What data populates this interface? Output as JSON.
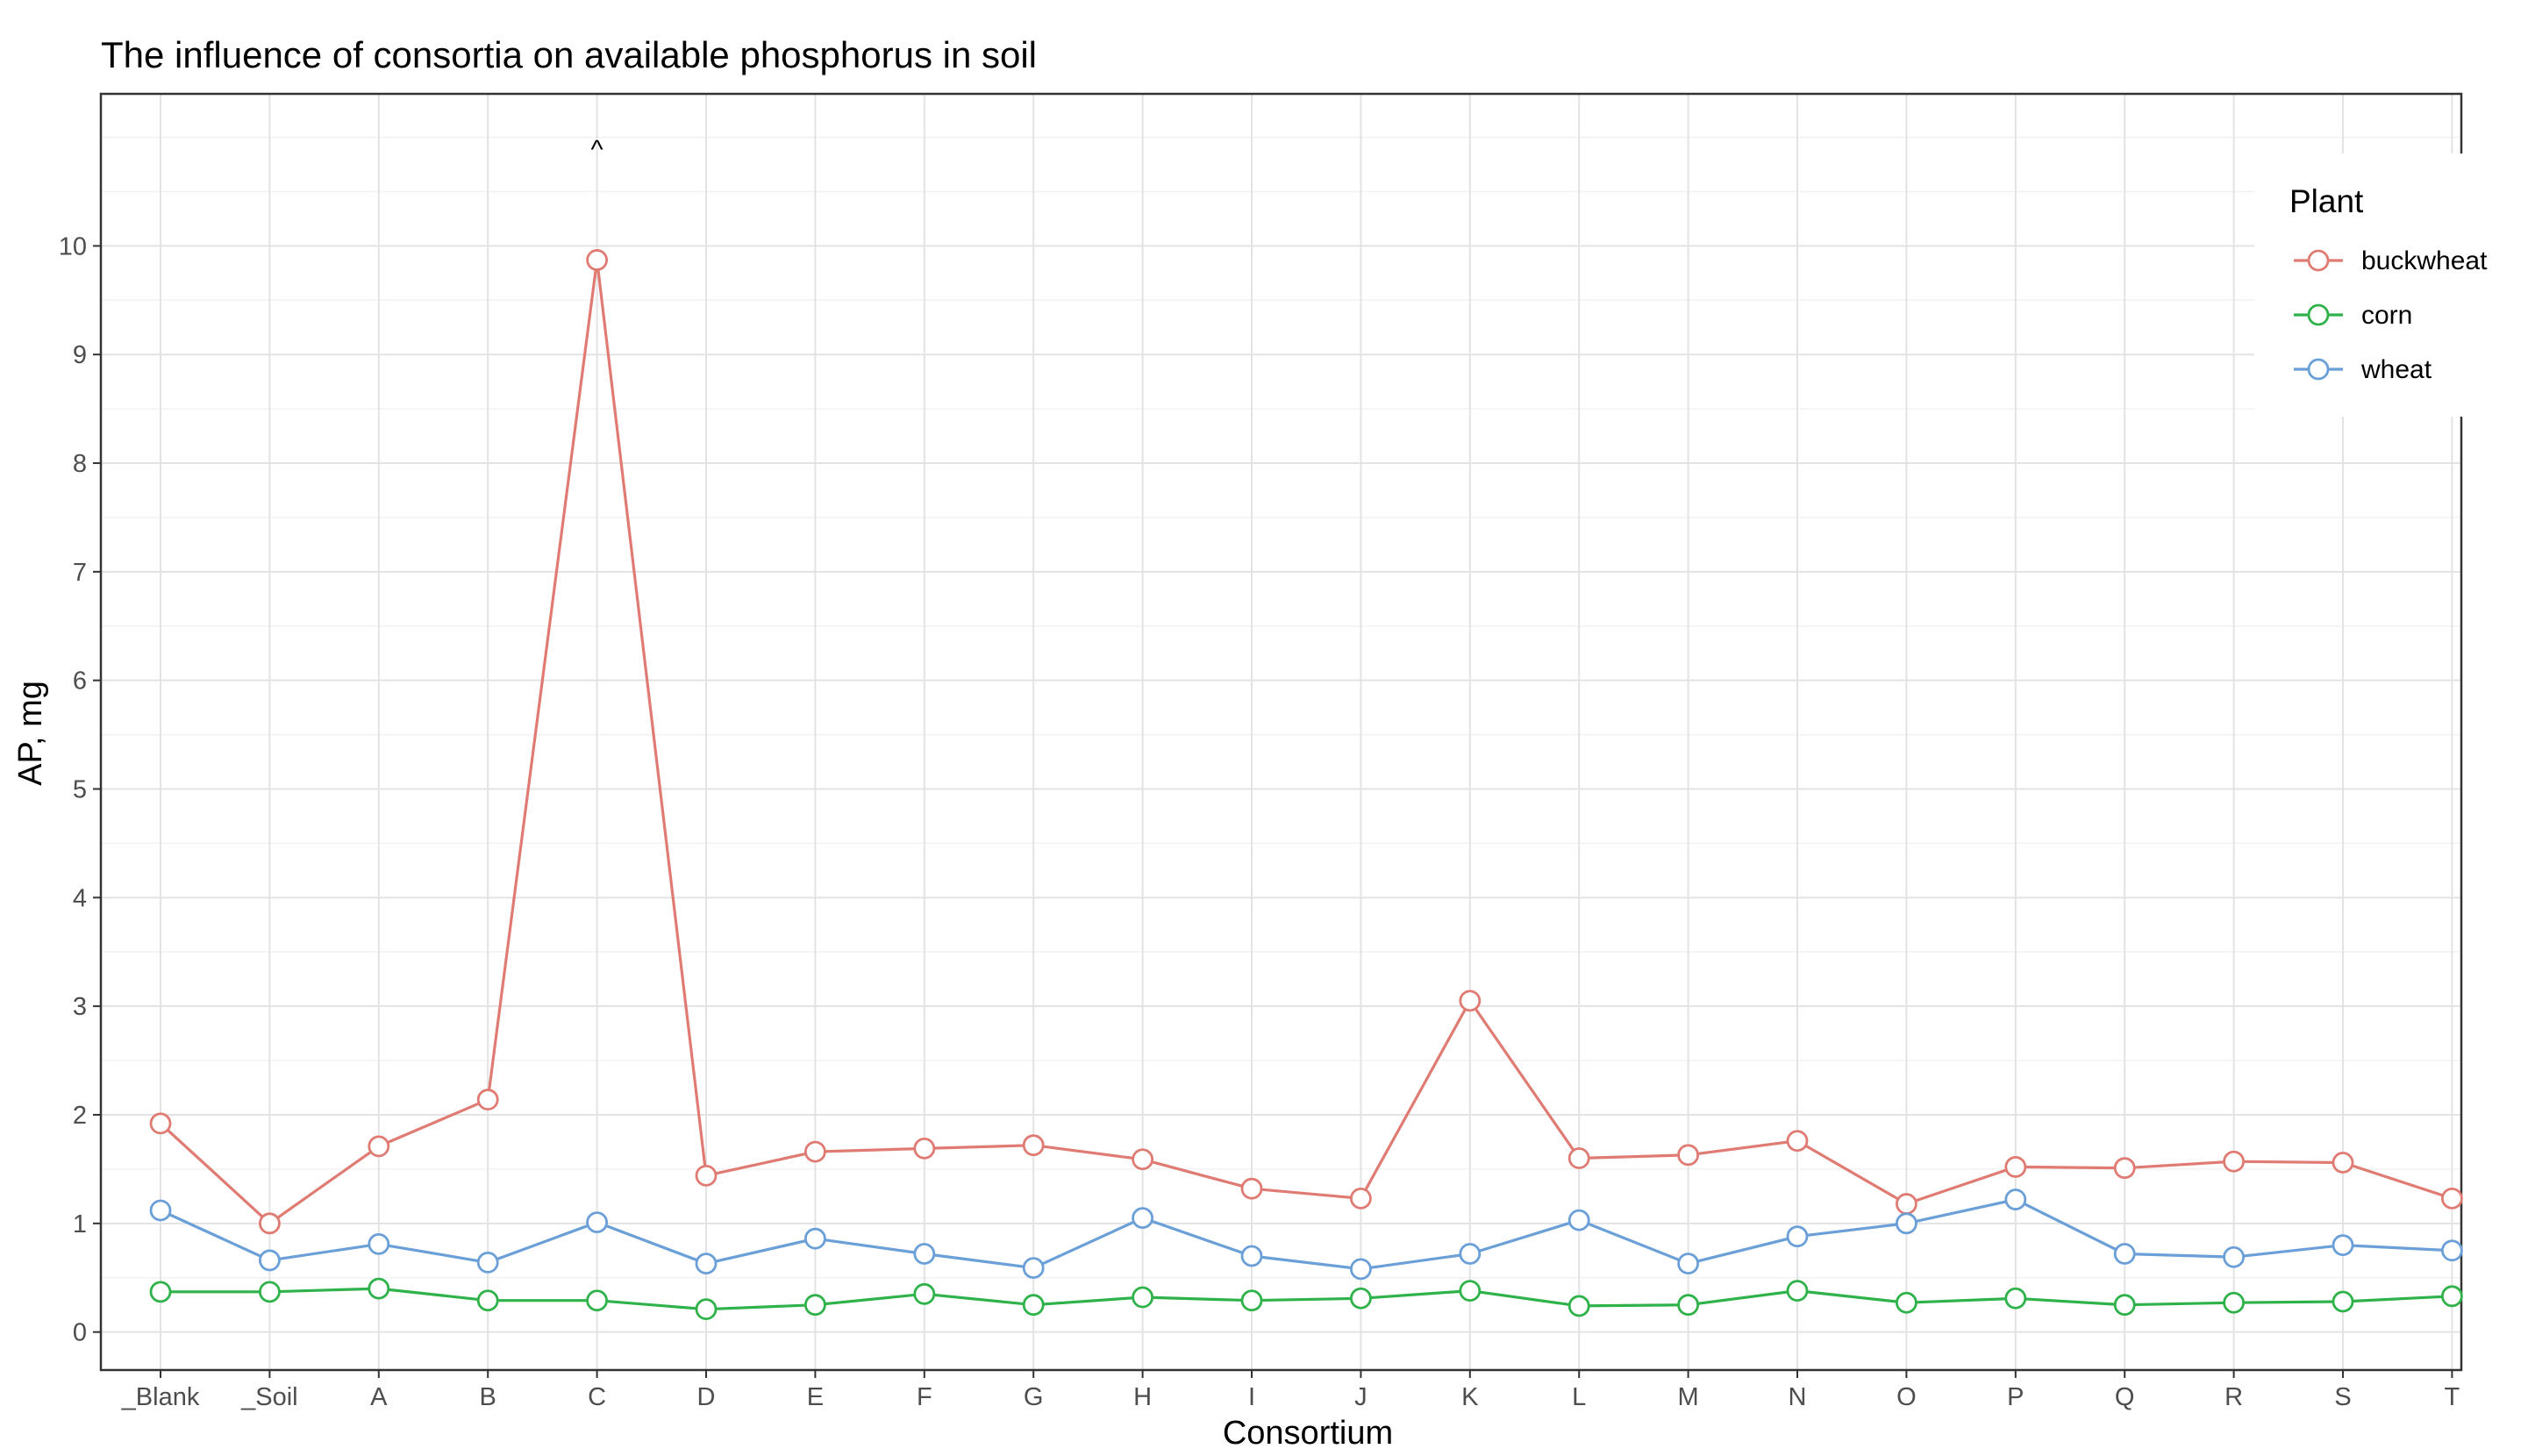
{
  "chart_data": {
    "type": "line",
    "title": "The influence of consortia on available phosphorus in soil",
    "xlabel": "Consortium",
    "ylabel": "AP, mg",
    "ylim": [
      -0.35,
      11.4
    ],
    "yticks": [
      0,
      1,
      2,
      3,
      4,
      5,
      6,
      7,
      8,
      9,
      10
    ],
    "grid": true,
    "legend_position": "top-right",
    "legend_title": "Plant",
    "categories": [
      "_Blank",
      "_Soil",
      "A",
      "B",
      "C",
      "D",
      "E",
      "F",
      "G",
      "H",
      "I",
      "J",
      "K",
      "L",
      "M",
      "N",
      "O",
      "P",
      "Q",
      "R",
      "S",
      "T"
    ],
    "series": [
      {
        "name": "buckwheat",
        "color": "#e07b73",
        "values": [
          1.92,
          1.0,
          1.71,
          2.14,
          9.87,
          1.44,
          1.66,
          1.69,
          1.72,
          1.59,
          1.32,
          1.23,
          3.05,
          1.6,
          1.63,
          1.76,
          1.18,
          1.52,
          1.51,
          1.57,
          1.56,
          1.23
        ]
      },
      {
        "name": "corn",
        "color": "#2fb24a",
        "values": [
          0.37,
          0.37,
          0.4,
          0.29,
          0.29,
          0.21,
          0.25,
          0.35,
          0.25,
          0.32,
          0.29,
          0.31,
          0.38,
          0.24,
          0.25,
          0.38,
          0.27,
          0.31,
          0.25,
          0.27,
          0.28,
          0.33
        ]
      },
      {
        "name": "wheat",
        "color": "#6a9fd8",
        "values": [
          1.12,
          0.66,
          0.81,
          0.64,
          1.01,
          0.63,
          0.86,
          0.72,
          0.59,
          1.05,
          0.7,
          0.58,
          0.72,
          1.03,
          0.63,
          0.88,
          1.0,
          1.22,
          0.72,
          0.69,
          0.8,
          0.75
        ]
      }
    ],
    "annotations": [
      {
        "text": "^",
        "category": "C",
        "y": 10.95
      }
    ]
  }
}
